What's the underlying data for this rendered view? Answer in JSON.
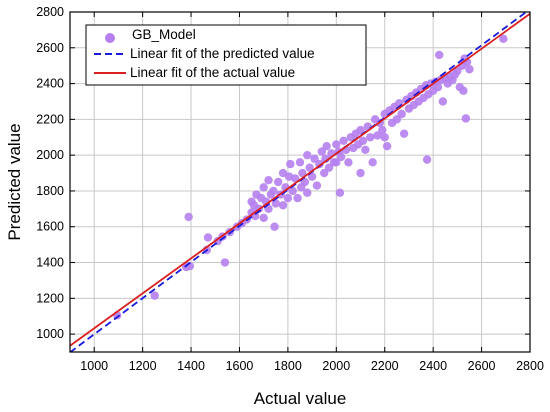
{
  "chart_data": {
    "type": "scatter",
    "title": "",
    "xlabel": "Actual value",
    "ylabel": "Predicted value",
    "xlim": [
      900,
      2800
    ],
    "ylim": [
      900,
      2800
    ],
    "xticks": [
      1000,
      1200,
      1400,
      1600,
      1800,
      2000,
      2200,
      2400,
      2600,
      2800
    ],
    "yticks": [
      1000,
      1200,
      1400,
      1600,
      1800,
      2000,
      2200,
      2400,
      2600,
      2800
    ],
    "grid": true,
    "legend_position": "top-left",
    "colors": {
      "scatter": "#b57ff0",
      "predicted_fit": "#1a1adc",
      "actual_fit": "#dc1f1f",
      "grid": "#c8c8c8"
    },
    "series": [
      {
        "name": "GB_Model",
        "kind": "scatter",
        "points": [
          [
            1095,
            1105
          ],
          [
            1250,
            1215
          ],
          [
            1380,
            1375
          ],
          [
            1390,
            1655
          ],
          [
            1395,
            1380
          ],
          [
            1465,
            1470
          ],
          [
            1470,
            1540
          ],
          [
            1510,
            1520
          ],
          [
            1530,
            1545
          ],
          [
            1540,
            1400
          ],
          [
            1560,
            1570
          ],
          [
            1590,
            1600
          ],
          [
            1610,
            1620
          ],
          [
            1630,
            1640
          ],
          [
            1650,
            1680
          ],
          [
            1650,
            1740
          ],
          [
            1660,
            1720
          ],
          [
            1665,
            1660
          ],
          [
            1670,
            1780
          ],
          [
            1680,
            1700
          ],
          [
            1690,
            1760
          ],
          [
            1700,
            1820
          ],
          [
            1700,
            1650
          ],
          [
            1710,
            1740
          ],
          [
            1720,
            1860
          ],
          [
            1720,
            1700
          ],
          [
            1730,
            1780
          ],
          [
            1740,
            1800
          ],
          [
            1745,
            1600
          ],
          [
            1750,
            1730
          ],
          [
            1760,
            1850
          ],
          [
            1770,
            1780
          ],
          [
            1780,
            1900
          ],
          [
            1780,
            1720
          ],
          [
            1790,
            1820
          ],
          [
            1800,
            1760
          ],
          [
            1805,
            1880
          ],
          [
            1810,
            1950
          ],
          [
            1820,
            1800
          ],
          [
            1830,
            1870
          ],
          [
            1840,
            1760
          ],
          [
            1850,
            1960
          ],
          [
            1855,
            1820
          ],
          [
            1860,
            1900
          ],
          [
            1870,
            1850
          ],
          [
            1880,
            2000
          ],
          [
            1880,
            1790
          ],
          [
            1890,
            1930
          ],
          [
            1900,
            1880
          ],
          [
            1910,
            1980
          ],
          [
            1920,
            1830
          ],
          [
            1930,
            1950
          ],
          [
            1940,
            2020
          ],
          [
            1950,
            1900
          ],
          [
            1955,
            1980
          ],
          [
            1960,
            2050
          ],
          [
            1970,
            1930
          ],
          [
            1980,
            2010
          ],
          [
            1990,
            1960
          ],
          [
            2000,
            2060
          ],
          [
            2000,
            1960
          ],
          [
            2010,
            2020
          ],
          [
            2015,
            1790
          ],
          [
            2020,
            1990
          ],
          [
            2030,
            2080
          ],
          [
            2040,
            2030
          ],
          [
            2050,
            1960
          ],
          [
            2060,
            2100
          ],
          [
            2070,
            2040
          ],
          [
            2080,
            2120
          ],
          [
            2090,
            2060
          ],
          [
            2100,
            1900
          ],
          [
            2100,
            2140
          ],
          [
            2110,
            2080
          ],
          [
            2120,
            2030
          ],
          [
            2130,
            2160
          ],
          [
            2140,
            2100
          ],
          [
            2150,
            1960
          ],
          [
            2160,
            2200
          ],
          [
            2170,
            2110
          ],
          [
            2180,
            2180
          ],
          [
            2190,
            2140
          ],
          [
            2200,
            2230
          ],
          [
            2200,
            2100
          ],
          [
            2210,
            2050
          ],
          [
            2220,
            2250
          ],
          [
            2230,
            2180
          ],
          [
            2240,
            2270
          ],
          [
            2250,
            2200
          ],
          [
            2260,
            2290
          ],
          [
            2270,
            2230
          ],
          [
            2280,
            2120
          ],
          [
            2290,
            2310
          ],
          [
            2300,
            2260
          ],
          [
            2310,
            2330
          ],
          [
            2320,
            2280
          ],
          [
            2330,
            2350
          ],
          [
            2340,
            2300
          ],
          [
            2350,
            2370
          ],
          [
            2360,
            2320
          ],
          [
            2370,
            2390
          ],
          [
            2375,
            1975
          ],
          [
            2380,
            2340
          ],
          [
            2390,
            2400
          ],
          [
            2400,
            2360
          ],
          [
            2410,
            2410
          ],
          [
            2420,
            2380
          ],
          [
            2425,
            2560
          ],
          [
            2430,
            2420
          ],
          [
            2440,
            2300
          ],
          [
            2450,
            2430
          ],
          [
            2460,
            2400
          ],
          [
            2470,
            2440
          ],
          [
            2480,
            2420
          ],
          [
            2490,
            2450
          ],
          [
            2500,
            2470
          ],
          [
            2510,
            2380
          ],
          [
            2520,
            2500
          ],
          [
            2525,
            2360
          ],
          [
            2530,
            2540
          ],
          [
            2535,
            2205
          ],
          [
            2540,
            2520
          ],
          [
            2550,
            2480
          ],
          [
            2690,
            2650
          ]
        ]
      },
      {
        "name": "Linear fit of the predicted value",
        "kind": "line",
        "style": "dashed",
        "x": [
          900,
          2800
        ],
        "y": [
          898,
          2816
        ]
      },
      {
        "name": "Linear fit of the actual value",
        "kind": "line",
        "style": "solid",
        "x": [
          900,
          2800
        ],
        "y": [
          935,
          2790
        ]
      }
    ]
  }
}
